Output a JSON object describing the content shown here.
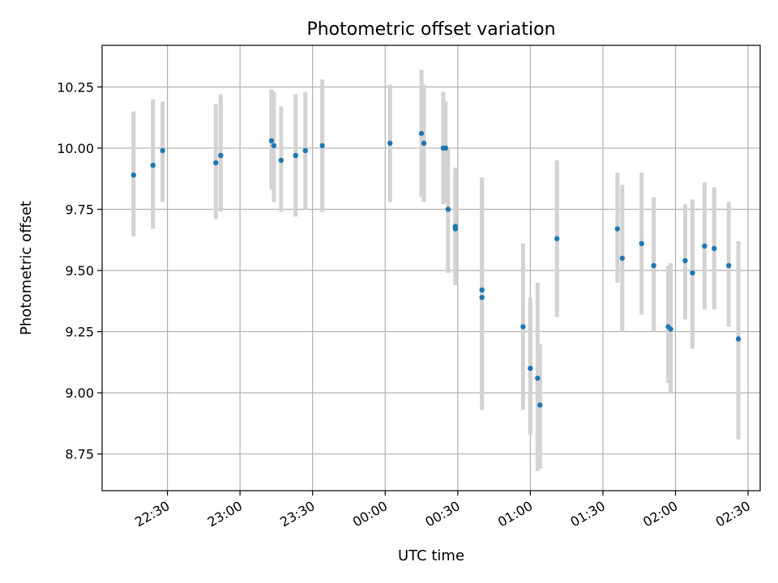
{
  "chart_data": {
    "type": "scatter",
    "title": "Photometric offset variation",
    "xlabel": "UTC time",
    "ylabel": "Photometric offset",
    "ylim": [
      8.6,
      10.42
    ],
    "xlim": [
      "2024-01-01T22:03",
      "2024-01-02T02:35"
    ],
    "grid": true,
    "x_ticks": [
      {
        "t": "2024-01-01T22:30",
        "label": "22:30"
      },
      {
        "t": "2024-01-01T23:00",
        "label": "23:00"
      },
      {
        "t": "2024-01-01T23:30",
        "label": "23:30"
      },
      {
        "t": "2024-01-02T00:00",
        "label": "00:00"
      },
      {
        "t": "2024-01-02T00:30",
        "label": "00:30"
      },
      {
        "t": "2024-01-02T01:00",
        "label": "01:00"
      },
      {
        "t": "2024-01-02T01:30",
        "label": "01:30"
      },
      {
        "t": "2024-01-02T02:00",
        "label": "02:00"
      },
      {
        "t": "2024-01-02T02:30",
        "label": "02:30"
      }
    ],
    "y_ticks": [
      {
        "v": 8.75,
        "label": "8.75"
      },
      {
        "v": 9.0,
        "label": "9.00"
      },
      {
        "v": 9.25,
        "label": "9.25"
      },
      {
        "v": 9.5,
        "label": "9.50"
      },
      {
        "v": 9.75,
        "label": "9.75"
      },
      {
        "v": 10.0,
        "label": "10.00"
      },
      {
        "v": 10.25,
        "label": "10.25"
      }
    ],
    "colors": {
      "point": "#1f77b4",
      "errorbar": "#d3d3d3",
      "grid": "#b0b0b0"
    },
    "points": [
      {
        "t": "2024-01-01T22:16",
        "y": 9.89,
        "lo": 9.64,
        "hi": 10.15
      },
      {
        "t": "2024-01-01T22:24",
        "y": 9.93,
        "lo": 9.67,
        "hi": 10.2
      },
      {
        "t": "2024-01-01T22:28",
        "y": 9.99,
        "lo": 9.78,
        "hi": 10.19
      },
      {
        "t": "2024-01-01T22:50",
        "y": 9.94,
        "lo": 9.71,
        "hi": 10.18
      },
      {
        "t": "2024-01-01T22:52",
        "y": 9.97,
        "lo": 9.74,
        "hi": 10.22
      },
      {
        "t": "2024-01-01T23:13",
        "y": 10.03,
        "lo": 9.83,
        "hi": 10.24
      },
      {
        "t": "2024-01-01T23:14",
        "y": 10.01,
        "lo": 9.78,
        "hi": 10.23
      },
      {
        "t": "2024-01-01T23:17",
        "y": 9.95,
        "lo": 9.74,
        "hi": 10.17
      },
      {
        "t": "2024-01-01T23:23",
        "y": 9.97,
        "lo": 9.72,
        "hi": 10.22
      },
      {
        "t": "2024-01-01T23:27",
        "y": 9.99,
        "lo": 9.75,
        "hi": 10.23
      },
      {
        "t": "2024-01-01T23:34",
        "y": 10.01,
        "lo": 9.74,
        "hi": 10.28
      },
      {
        "t": "2024-01-02T00:02",
        "y": 10.02,
        "lo": 9.78,
        "hi": 10.26
      },
      {
        "t": "2024-01-02T00:15",
        "y": 10.06,
        "lo": 9.8,
        "hi": 10.32
      },
      {
        "t": "2024-01-02T00:16",
        "y": 10.02,
        "lo": 9.78,
        "hi": 10.26
      },
      {
        "t": "2024-01-02T00:24",
        "y": 10.0,
        "lo": 9.77,
        "hi": 10.23
      },
      {
        "t": "2024-01-02T00:25",
        "y": 10.0,
        "lo": 9.78,
        "hi": 10.19
      },
      {
        "t": "2024-01-02T00:26",
        "y": 9.75,
        "lo": 9.49,
        "hi": 10.0
      },
      {
        "t": "2024-01-02T00:29",
        "y": 9.68,
        "lo": 9.45,
        "hi": 9.92
      },
      {
        "t": "2024-01-02T00:29",
        "y": 9.67,
        "lo": 9.44,
        "hi": 9.9
      },
      {
        "t": "2024-01-02T00:40",
        "y": 9.42,
        "lo": 8.97,
        "hi": 9.88
      },
      {
        "t": "2024-01-02T00:40",
        "y": 9.39,
        "lo": 8.93,
        "hi": 9.86
      },
      {
        "t": "2024-01-02T00:57",
        "y": 9.27,
        "lo": 8.93,
        "hi": 9.61
      },
      {
        "t": "2024-01-02T01:00",
        "y": 9.1,
        "lo": 8.83,
        "hi": 9.38
      },
      {
        "t": "2024-01-02T01:00",
        "y": 9.1,
        "lo": 8.84,
        "hi": 9.39
      },
      {
        "t": "2024-01-02T01:03",
        "y": 9.06,
        "lo": 8.68,
        "hi": 9.45
      },
      {
        "t": "2024-01-02T01:04",
        "y": 8.95,
        "lo": 8.69,
        "hi": 9.2
      },
      {
        "t": "2024-01-02T01:11",
        "y": 9.63,
        "lo": 9.31,
        "hi": 9.95
      },
      {
        "t": "2024-01-02T01:36",
        "y": 9.67,
        "lo": 9.45,
        "hi": 9.9
      },
      {
        "t": "2024-01-02T01:38",
        "y": 9.55,
        "lo": 9.25,
        "hi": 9.85
      },
      {
        "t": "2024-01-02T01:46",
        "y": 9.61,
        "lo": 9.32,
        "hi": 9.9
      },
      {
        "t": "2024-01-02T01:51",
        "y": 9.52,
        "lo": 9.25,
        "hi": 9.8
      },
      {
        "t": "2024-01-02T01:57",
        "y": 9.27,
        "lo": 9.04,
        "hi": 9.52
      },
      {
        "t": "2024-01-02T01:58",
        "y": 9.26,
        "lo": 9.0,
        "hi": 9.53
      },
      {
        "t": "2024-01-02T02:04",
        "y": 9.54,
        "lo": 9.3,
        "hi": 9.77
      },
      {
        "t": "2024-01-02T02:07",
        "y": 9.49,
        "lo": 9.18,
        "hi": 9.79
      },
      {
        "t": "2024-01-02T02:12",
        "y": 9.6,
        "lo": 9.34,
        "hi": 9.86
      },
      {
        "t": "2024-01-02T02:16",
        "y": 9.59,
        "lo": 9.34,
        "hi": 9.84
      },
      {
        "t": "2024-01-02T02:22",
        "y": 9.52,
        "lo": 9.27,
        "hi": 9.78
      },
      {
        "t": "2024-01-02T02:26",
        "y": 9.22,
        "lo": 8.81,
        "hi": 9.62
      }
    ]
  }
}
